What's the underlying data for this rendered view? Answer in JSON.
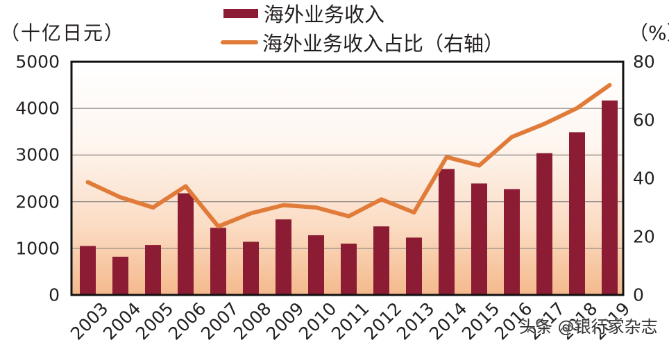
{
  "chart_data": {
    "type": "bar+line",
    "title": "",
    "categories": [
      "2003",
      "2004",
      "2005",
      "2006",
      "2007",
      "2008",
      "2009",
      "2010",
      "2011",
      "2012",
      "2013",
      "2014",
      "2015",
      "2016",
      "2017",
      "2018",
      "2019"
    ],
    "series": [
      {
        "name": "海外业务收入",
        "type": "bar",
        "axis": "left",
        "color": "#8b1c33",
        "values": [
          1050,
          820,
          1070,
          2180,
          1440,
          1140,
          1620,
          1280,
          1100,
          1470,
          1230,
          2700,
          2390,
          2270,
          3040,
          3490,
          4170
        ]
      },
      {
        "name": "海外业务收入占比（右轴）",
        "type": "line",
        "axis": "right",
        "color": "#e07b39",
        "values": [
          38.7,
          33.5,
          30.0,
          37.3,
          23.5,
          28.0,
          30.8,
          30.0,
          27.0,
          32.8,
          28.3,
          47.3,
          44.4,
          54.2,
          58.7,
          64.1,
          72.0
        ]
      }
    ],
    "ylabel": "（十亿日元）",
    "ylabel_right": "（%）",
    "xlabel": "",
    "ylim": [
      0,
      5000
    ],
    "ylim_right": [
      0,
      80
    ],
    "yticks": [
      0,
      1000,
      2000,
      3000,
      4000,
      5000
    ],
    "yticks_right": [
      0,
      20,
      40,
      60,
      80
    ],
    "grid": true,
    "legend_position": "top-center",
    "background": "gradient white to light orange (#f5c49a) bottom"
  },
  "labels": {
    "unit_left": "（十亿日元）",
    "unit_right": "（%）",
    "legend_bar": "海外业务收入",
    "legend_line": "海外业务收入占比（右轴）",
    "watermark": "头条 @银行家杂志"
  },
  "axis": {
    "left_ticks": [
      "5000",
      "4000",
      "3000",
      "2000",
      "1000",
      "0"
    ],
    "right_ticks": [
      "80",
      "60",
      "40",
      "20",
      "0"
    ]
  }
}
